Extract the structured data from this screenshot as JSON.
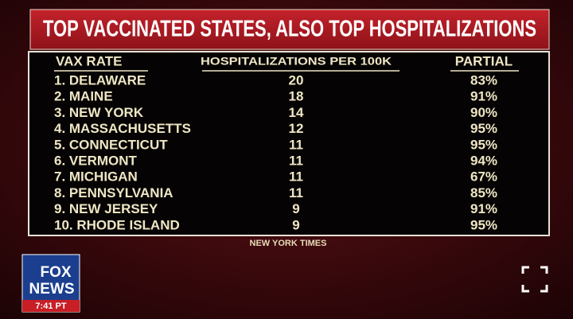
{
  "header": {
    "title": "TOP VACCINATED STATES, ALSO TOP HOSPITALIZATIONS"
  },
  "table": {
    "columns": [
      "VAX RATE",
      "HOSPITALIZATIONS PER 100K",
      "PARTIAL"
    ],
    "rows": [
      [
        "1. DELAWARE",
        20,
        "83%"
      ],
      [
        "2. MAINE",
        18,
        "91%"
      ],
      [
        "3. NEW YORK",
        14,
        "90%"
      ],
      [
        "4. MASSACHUSETTS",
        12,
        "95%"
      ],
      [
        "5. CONNECTICUT",
        11,
        "95%"
      ],
      [
        "6. VERMONT",
        11,
        "94%"
      ],
      [
        "7. MICHIGAN",
        11,
        "67%"
      ],
      [
        "8. PENNSYLVANIA",
        11,
        "85%"
      ],
      [
        "9. NEW JERSEY",
        9,
        "91%"
      ],
      [
        "10. RHODE ISLAND",
        9,
        "95%"
      ]
    ]
  },
  "source": "NEW YORK TIMES",
  "logo": {
    "top": "FOX",
    "bottom": "NEWS",
    "time": "7:41 PT"
  }
}
